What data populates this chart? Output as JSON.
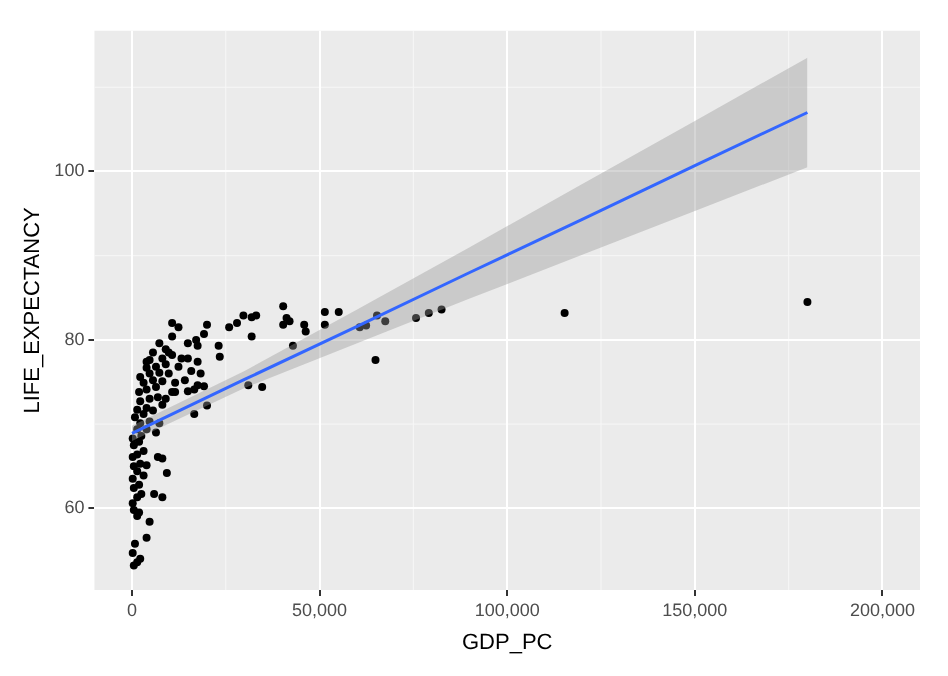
{
  "chart_data": {
    "type": "scatter",
    "xlabel": "GDP_PC",
    "ylabel": "LIFE_EXPECTANCY",
    "xlim": [
      -10000,
      210000
    ],
    "ylim": [
      50.3,
      116.7
    ],
    "xticks": [
      0,
      {
        "value": 50000,
        "label": "50,000"
      },
      {
        "value": 100000,
        "label": "100,000"
      },
      {
        "value": 150000,
        "label": "150,000"
      },
      {
        "value": 200000,
        "label": "200,000"
      }
    ],
    "yticks": [
      60,
      80,
      100
    ],
    "grid": true,
    "series": [
      {
        "marker": "circle",
        "color": "#000000",
        "x": [
          500,
          1400,
          2200,
          200,
          800,
          3900,
          4700,
          1400,
          500,
          1900,
          200,
          1400,
          2500,
          500,
          1900,
          200,
          3100,
          1400,
          500,
          2200,
          3900,
          200,
          1400,
          3100,
          500,
          1900,
          200,
          2500,
          5900,
          8100,
          9300,
          6900,
          8100,
          1400,
          3900,
          6400,
          2200,
          4700,
          7300,
          800,
          3100,
          5600,
          1400,
          3900,
          8100,
          2200,
          4700,
          6900,
          9000,
          1900,
          3900,
          6400,
          10700,
          3100,
          5600,
          8100,
          11500,
          2200,
          4700,
          7300,
          9800,
          3900,
          6400,
          9000,
          12400,
          4700,
          8100,
          10700,
          5600,
          9800,
          13200,
          3900,
          14900,
          17500,
          15800,
          18300,
          14100,
          16600,
          19200,
          11500,
          14900,
          17500,
          16600,
          20000,
          7300,
          10700,
          9000,
          10700,
          12400,
          14900,
          17500,
          20000,
          19200,
          17100,
          23100,
          23400,
          25900,
          28000,
          29700,
          31900,
          33100,
          31900,
          31000,
          34700,
          40300,
          41200,
          42000,
          40300,
          42900,
          45900,
          46300,
          51400,
          55100,
          51400,
          60700,
          62400,
          64900,
          65300,
          67500,
          75700,
          79100,
          82500,
          115300,
          180000
        ],
        "values": [
          53.2,
          53.6,
          54.0,
          54.7,
          55.8,
          56.5,
          58.4,
          59.1,
          59.8,
          59.5,
          60.6,
          61.3,
          61.7,
          62.4,
          62.8,
          63.5,
          63.9,
          64.4,
          65.0,
          65.3,
          65.1,
          66.1,
          66.4,
          66.8,
          67.5,
          67.9,
          68.3,
          68.6,
          61.7,
          61.3,
          64.2,
          66.1,
          65.9,
          69.4,
          69.4,
          69.0,
          70.1,
          70.3,
          70.1,
          70.8,
          71.2,
          71.6,
          71.7,
          71.9,
          72.3,
          72.7,
          73.0,
          73.2,
          73.0,
          73.8,
          74.1,
          74.4,
          73.8,
          74.9,
          75.2,
          75.1,
          74.9,
          75.6,
          76.0,
          76.1,
          76.0,
          76.7,
          76.8,
          77.1,
          76.8,
          77.6,
          77.8,
          78.2,
          78.5,
          78.5,
          77.8,
          77.4,
          77.8,
          77.4,
          76.3,
          76.0,
          75.2,
          74.1,
          74.5,
          73.8,
          73.9,
          74.6,
          71.2,
          72.2,
          79.6,
          80.4,
          78.9,
          82.0,
          81.5,
          79.6,
          79.3,
          81.8,
          80.7,
          80.0,
          79.3,
          78.0,
          81.5,
          82.0,
          82.9,
          82.7,
          82.9,
          80.4,
          74.6,
          74.4,
          84.0,
          82.6,
          82.2,
          81.8,
          79.3,
          81.8,
          81.0,
          83.3,
          83.3,
          81.8,
          81.5,
          81.7,
          77.6,
          82.9,
          82.2,
          82.6,
          83.2,
          83.6,
          83.2,
          84.5
        ]
      },
      {
        "type": "line",
        "marker": "none",
        "color": "#3366ff",
        "x": [
          0,
          30000,
          60000,
          90000,
          120000,
          150000,
          180000
        ],
        "values": [
          68.9,
          75.3,
          81.6,
          88.0,
          94.3,
          100.7,
          107.0
        ],
        "lower": [
          68.0,
          74.3,
          79.6,
          84.9,
          90.1,
          95.3,
          100.5
        ],
        "upper": [
          69.8,
          76.3,
          83.6,
          91.0,
          98.5,
          106.0,
          113.5
        ]
      }
    ]
  }
}
